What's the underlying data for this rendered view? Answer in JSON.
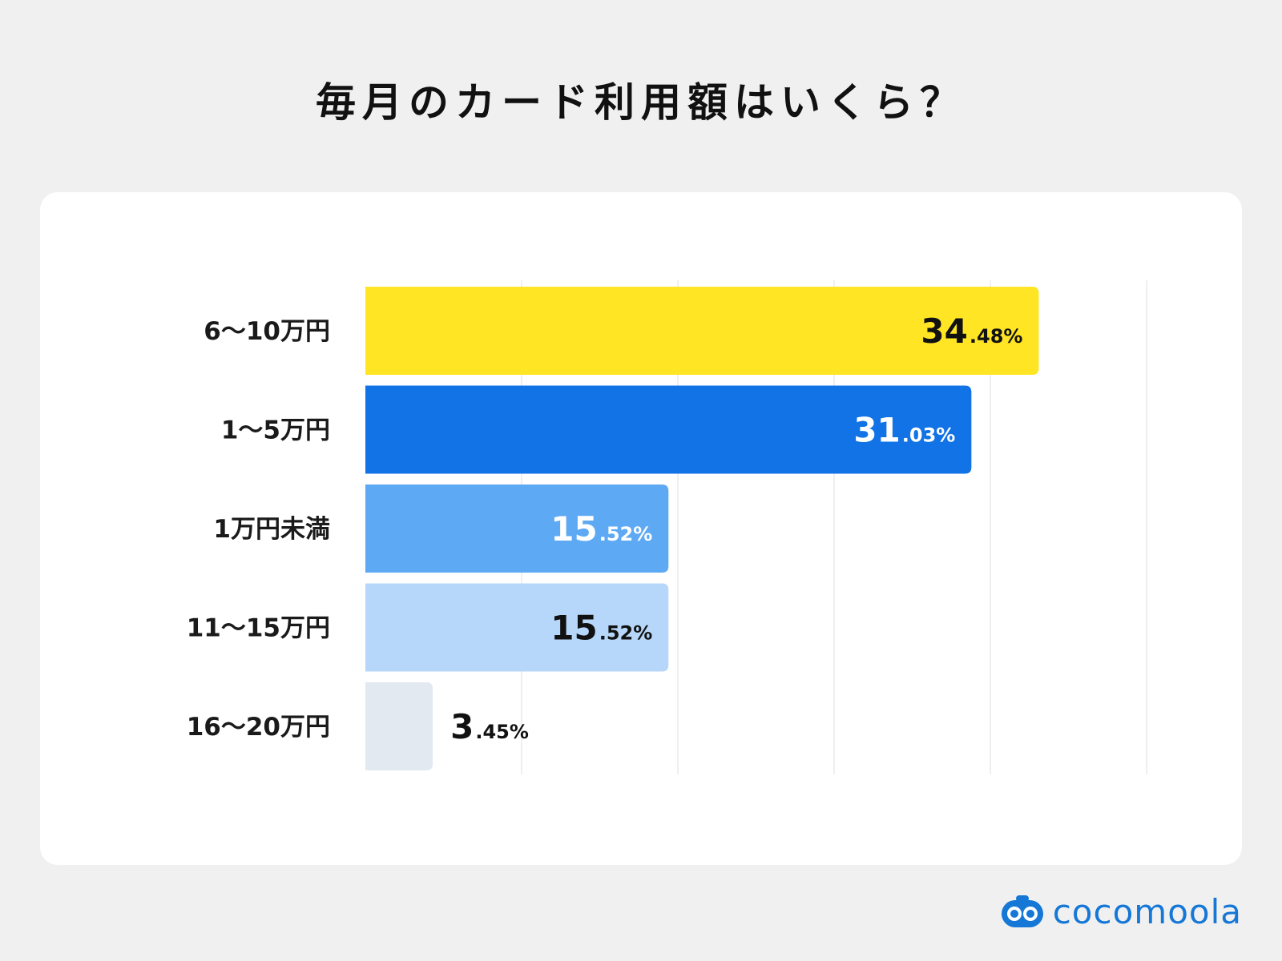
{
  "title": "毎月のカード利用額はいくら？",
  "brand": {
    "name": "cocomoola",
    "icon": "cocomoola-logo-icon",
    "color": "#1577d6"
  },
  "chart_data": {
    "type": "bar",
    "orientation": "horizontal",
    "title": "毎月のカード利用額はいくら？",
    "categories": [
      "6〜10万円",
      "1〜5万円",
      "1万円未満",
      "11〜15万円",
      "16〜20万円"
    ],
    "values": [
      34.48,
      31.03,
      15.52,
      15.52,
      3.45
    ],
    "value_labels": [
      {
        "int": "34",
        "dec": ".48%"
      },
      {
        "int": "31",
        "dec": ".03%"
      },
      {
        "int": "15",
        "dec": ".52%"
      },
      {
        "int": "15",
        "dec": ".52%"
      },
      {
        "int": "3",
        "dec": ".45%"
      }
    ],
    "colors": [
      "#ffe524",
      "#1273e6",
      "#5ea9f4",
      "#b7d7fa",
      "#e3e9f1"
    ],
    "label_colors": [
      "#111111",
      "#ffffff",
      "#ffffff",
      "#111111",
      "#111111"
    ],
    "xlim": [
      0,
      40
    ],
    "grid": true,
    "legend": "none"
  }
}
